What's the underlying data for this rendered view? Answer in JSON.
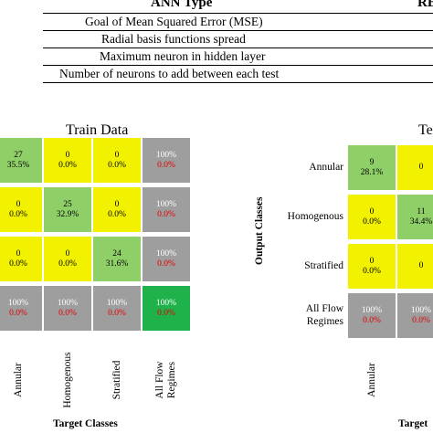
{
  "params_table": {
    "headers": [
      "ANN Type",
      "RB"
    ],
    "rows": [
      "Goal of Mean Squared Error (MSE)",
      "Radial basis functions spread",
      "Maximum neuron in hidden layer",
      "Number of neurons to add between each test"
    ]
  },
  "train_panel": {
    "title": "Train Data",
    "x_axis_title": "Target Classes",
    "x_labels": [
      "Annular",
      "Homogenous",
      "Stratified",
      "All Flow\nRegimes"
    ],
    "cells": [
      [
        [
          "27",
          "35.5%"
        ],
        [
          "0",
          "0.0%"
        ],
        [
          "0",
          "0.0%"
        ],
        [
          "100%",
          "0.0%"
        ]
      ],
      [
        [
          "0",
          "0.0%"
        ],
        [
          "25",
          "32.9%"
        ],
        [
          "0",
          "0.0%"
        ],
        [
          "100%",
          "0.0%"
        ]
      ],
      [
        [
          "0",
          "0.0%"
        ],
        [
          "0",
          "0.0%"
        ],
        [
          "24",
          "31.6%"
        ],
        [
          "100%",
          "0.0%"
        ]
      ],
      [
        [
          "100%",
          "0.0%"
        ],
        [
          "100%",
          "0.0%"
        ],
        [
          "100%",
          "0.0%"
        ],
        [
          "100%",
          "0.0%"
        ]
      ]
    ]
  },
  "test_panel": {
    "title": "Te",
    "x_axis_title": "Target",
    "y_axis_title": "Output Classes",
    "row_labels": [
      "Annular",
      "Homogenous",
      "Stratified",
      "All Flow\nRegimes"
    ],
    "x_labels": [
      "Annular"
    ],
    "cells": [
      [
        [
          "9",
          "28.1%"
        ],
        [
          "0",
          ""
        ]
      ],
      [
        [
          "0",
          "0.0%"
        ],
        [
          "11",
          "34.4%"
        ]
      ],
      [
        [
          "0",
          "0.0%"
        ],
        [
          "0",
          ""
        ]
      ],
      [
        [
          "100%",
          "0.0%"
        ],
        [
          "100%",
          "0.0%"
        ]
      ]
    ]
  },
  "colors": {
    "correct": "#8fcf68",
    "incorrect": "#f2f200",
    "summary": "#9e9e9e",
    "overall": "#1fb24a",
    "error_text": "#e00000"
  }
}
